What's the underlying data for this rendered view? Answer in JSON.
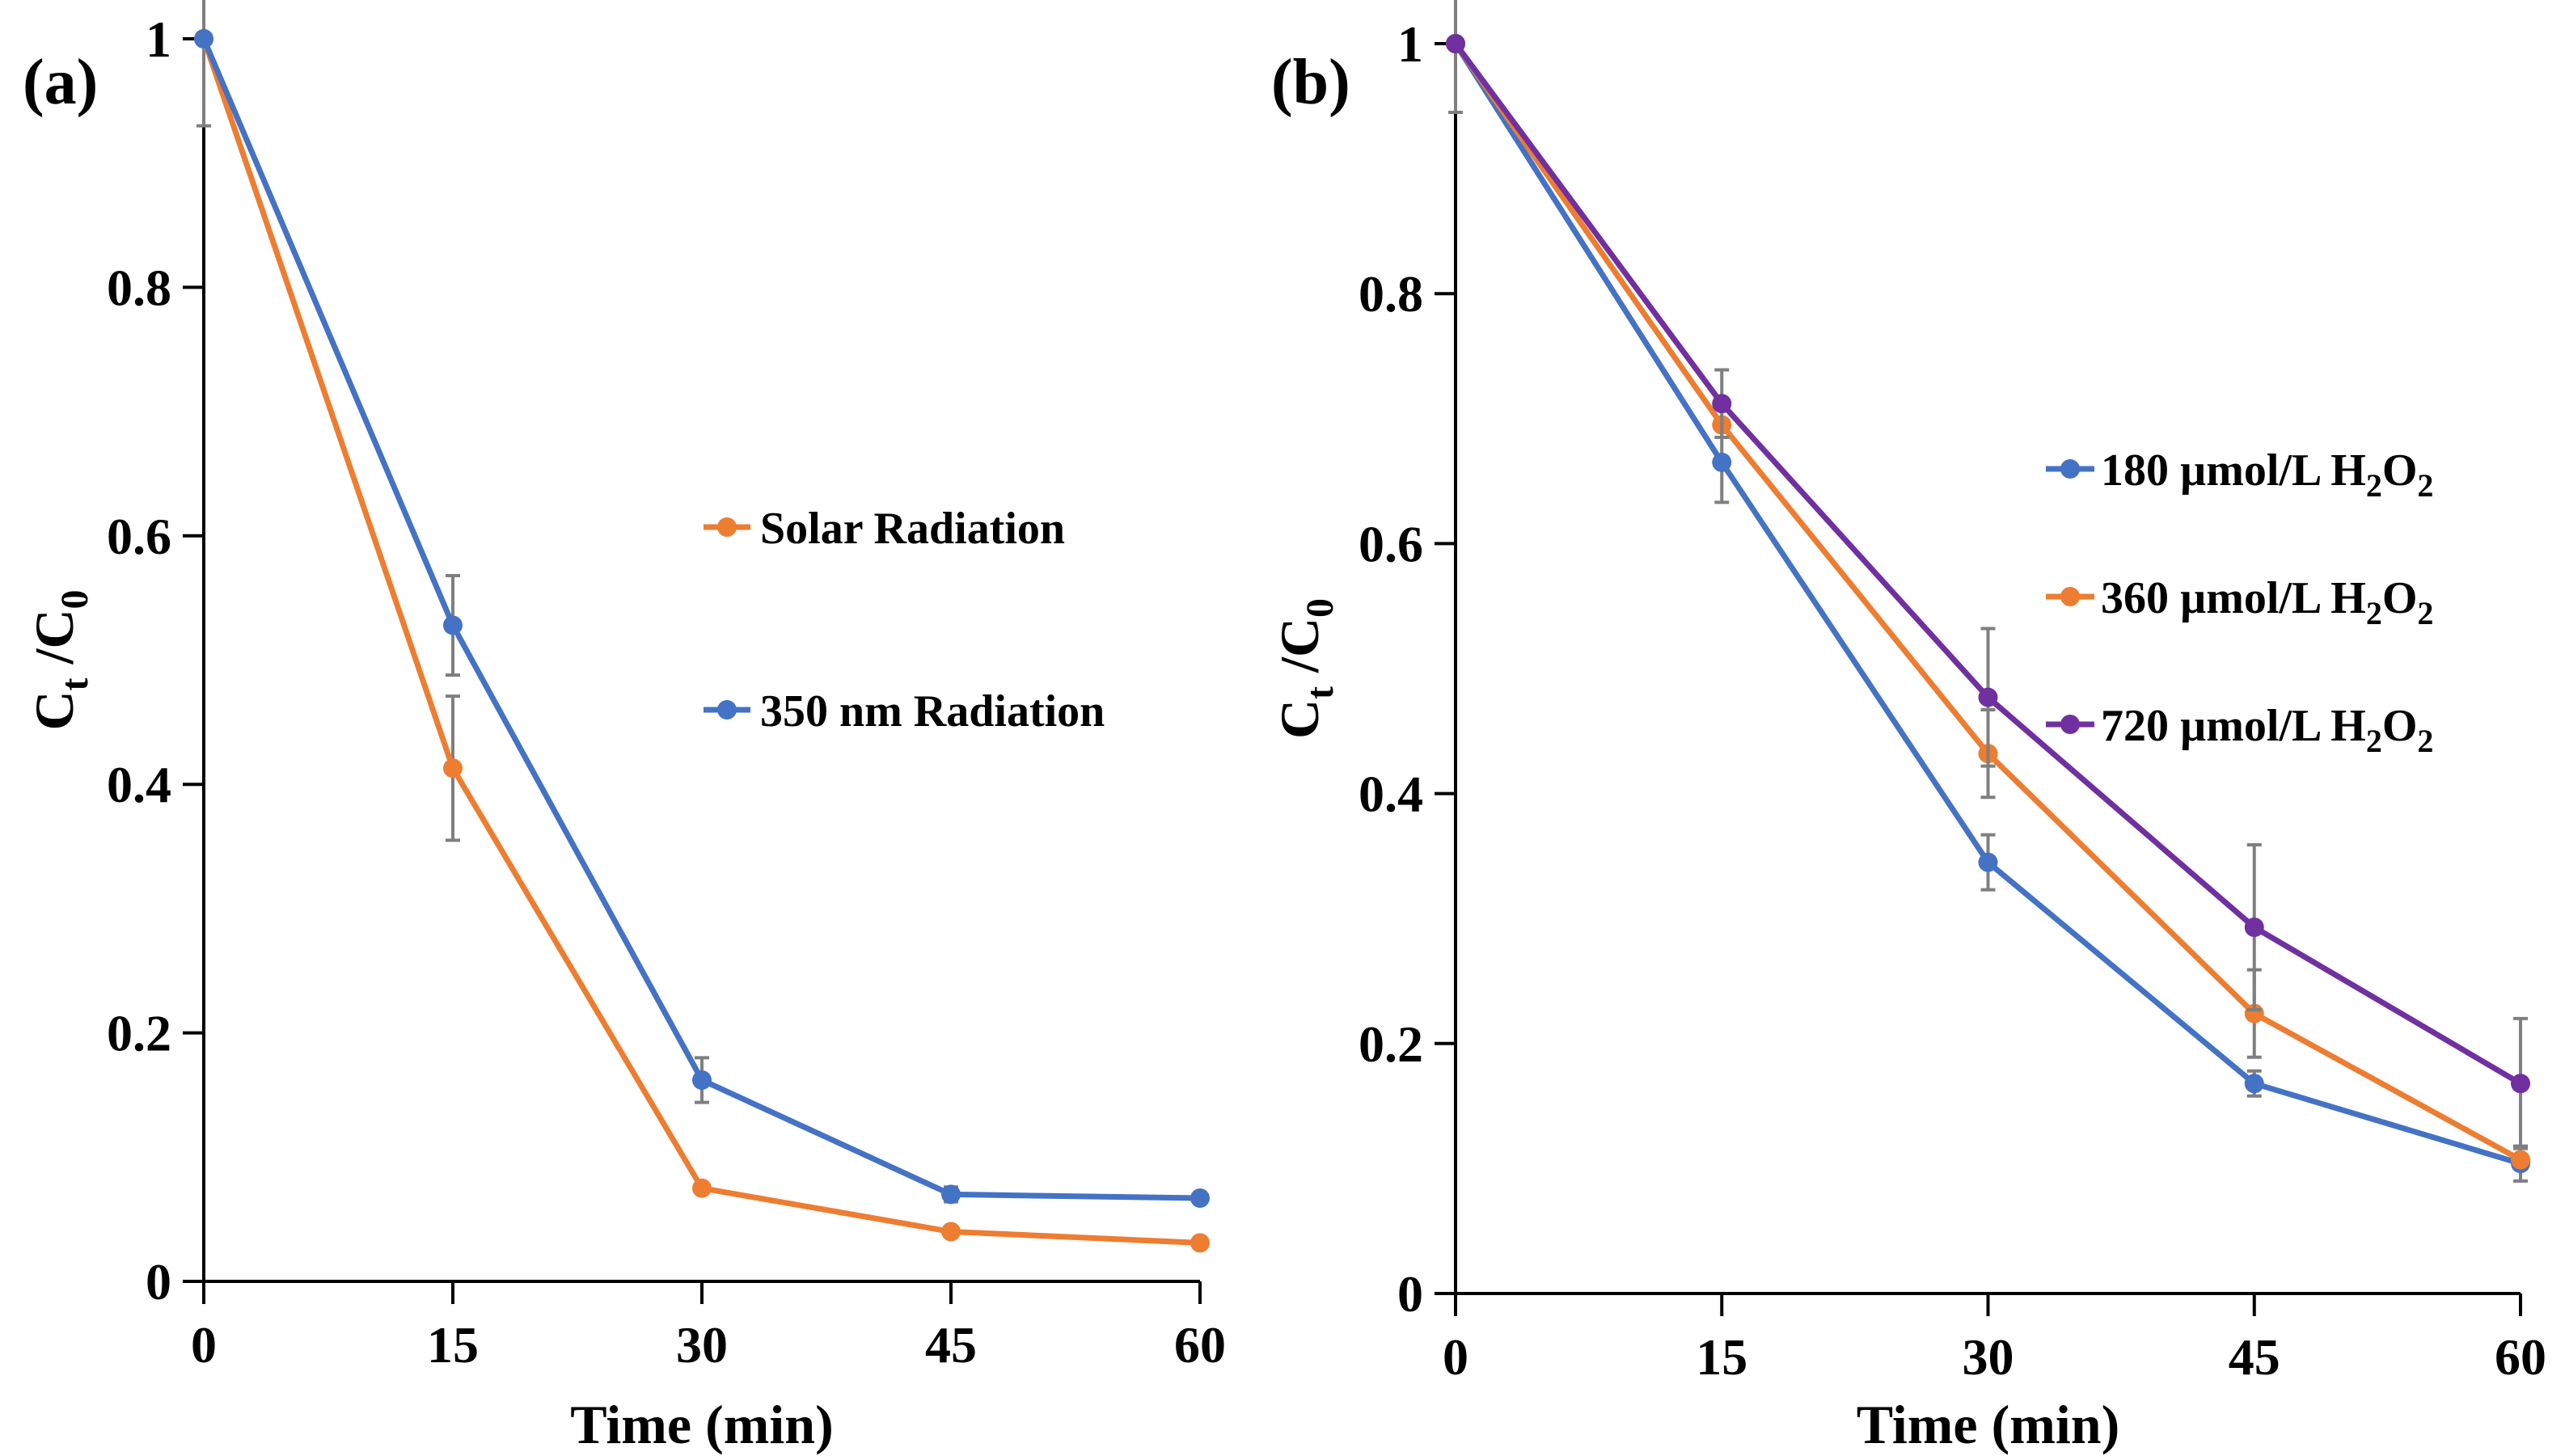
{
  "chart_data": [
    {
      "type": "line",
      "panel_label": "(a)",
      "xlabel": "Time (min)",
      "ylabel": {
        "main": "C",
        "sub1": "t",
        "sep": " /C",
        "sub2": "0"
      },
      "x": [
        0,
        15,
        30,
        45,
        60
      ],
      "x_ticks": [
        "0",
        "15",
        "30",
        "45",
        "60"
      ],
      "y_ticks": [
        "0",
        "0.2",
        "0.4",
        "0.6",
        "0.8",
        "1"
      ],
      "xlim": [
        0,
        60
      ],
      "ylim": [
        0,
        1
      ],
      "legend_position": "center-right",
      "series": [
        {
          "name": "Solar Radiation",
          "color": "#ED7D31",
          "values": [
            1.0,
            0.413,
            0.075,
            0.04,
            0.031
          ],
          "errors": [
            0.07,
            0.058,
            0.0,
            0.0,
            0.0
          ]
        },
        {
          "name": "350 nm Radiation",
          "color": "#4472C4",
          "values": [
            1.0,
            0.528,
            0.162,
            0.07,
            0.067
          ],
          "errors": [
            0.0,
            0.04,
            0.018,
            0.006,
            0.0
          ]
        }
      ]
    },
    {
      "type": "line",
      "panel_label": "(b)",
      "xlabel": "Time (min)",
      "ylabel": {
        "main": "C",
        "sub1": "t",
        "sep": " /C",
        "sub2": "0"
      },
      "x": [
        0,
        15,
        30,
        45,
        60
      ],
      "x_ticks": [
        "0",
        "15",
        "30",
        "45",
        "60"
      ],
      "y_ticks": [
        "0",
        "0.2",
        "0.4",
        "0.6",
        "0.8",
        "1"
      ],
      "xlim": [
        0,
        60
      ],
      "ylim": [
        0,
        1
      ],
      "legend_position": "right",
      "series": [
        {
          "name": "180 µmol/L H₂O₂",
          "label_main": "180 µmol/L H",
          "label_sub1": "2",
          "label_mid": "O",
          "label_sub2": "2",
          "color": "#4472C4",
          "values": [
            1.0,
            0.665,
            0.345,
            0.168,
            0.104
          ],
          "errors": [
            0.0,
            0.032,
            0.022,
            0.01,
            0.014
          ]
        },
        {
          "name": "360 µmol/L H₂O₂",
          "label_main": "360 µmol/L H",
          "label_sub1": "2",
          "label_mid": "O",
          "label_sub2": "2",
          "color": "#ED7D31",
          "values": [
            1.0,
            0.695,
            0.432,
            0.224,
            0.107
          ],
          "errors": [
            0.0,
            0.0,
            0.035,
            0.035,
            0.0
          ]
        },
        {
          "name": "720 µmol/L H₂O₂",
          "label_main": "720 µmol/L H",
          "label_sub1": "2",
          "label_mid": "O",
          "label_sub2": "2",
          "color": "#7030A0",
          "values": [
            1.0,
            0.712,
            0.477,
            0.293,
            0.168
          ],
          "errors": [
            0.055,
            0.027,
            0.055,
            0.066,
            0.052
          ]
        }
      ]
    }
  ]
}
